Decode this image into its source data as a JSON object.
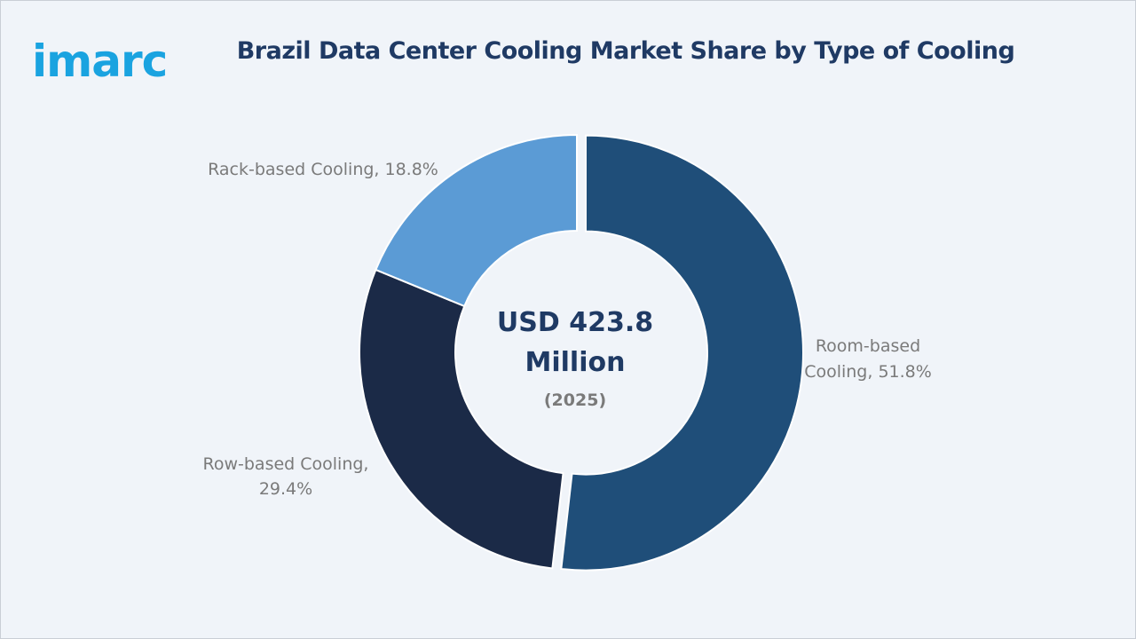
{
  "brand": {
    "logo_text": "imarc"
  },
  "title": "Brazil Data Center Cooling Market Share by Type of Cooling",
  "center": {
    "line1": "USD 423.8",
    "line2": "Million",
    "year": "(2025)"
  },
  "colors": {
    "background": "#f0f4f9",
    "title": "#1f3a64",
    "logo": "#1aa3e0"
  },
  "chart_data": {
    "type": "pie",
    "variant": "donut",
    "slices": [
      {
        "label": "Room-based Cooling",
        "value": 51.8,
        "text": [
          "Room-based",
          "Cooling, 51.8%"
        ],
        "color": "#1f4e79"
      },
      {
        "label": "Row-based Cooling",
        "value": 29.4,
        "text": [
          "Row-based Cooling,",
          "29.4%"
        ],
        "color": "#1b2a47"
      },
      {
        "label": "Rack-based Cooling",
        "value": 18.8,
        "text": [
          "Rack-based Cooling, 18.8%"
        ],
        "color": "#5b9bd5"
      }
    ]
  }
}
